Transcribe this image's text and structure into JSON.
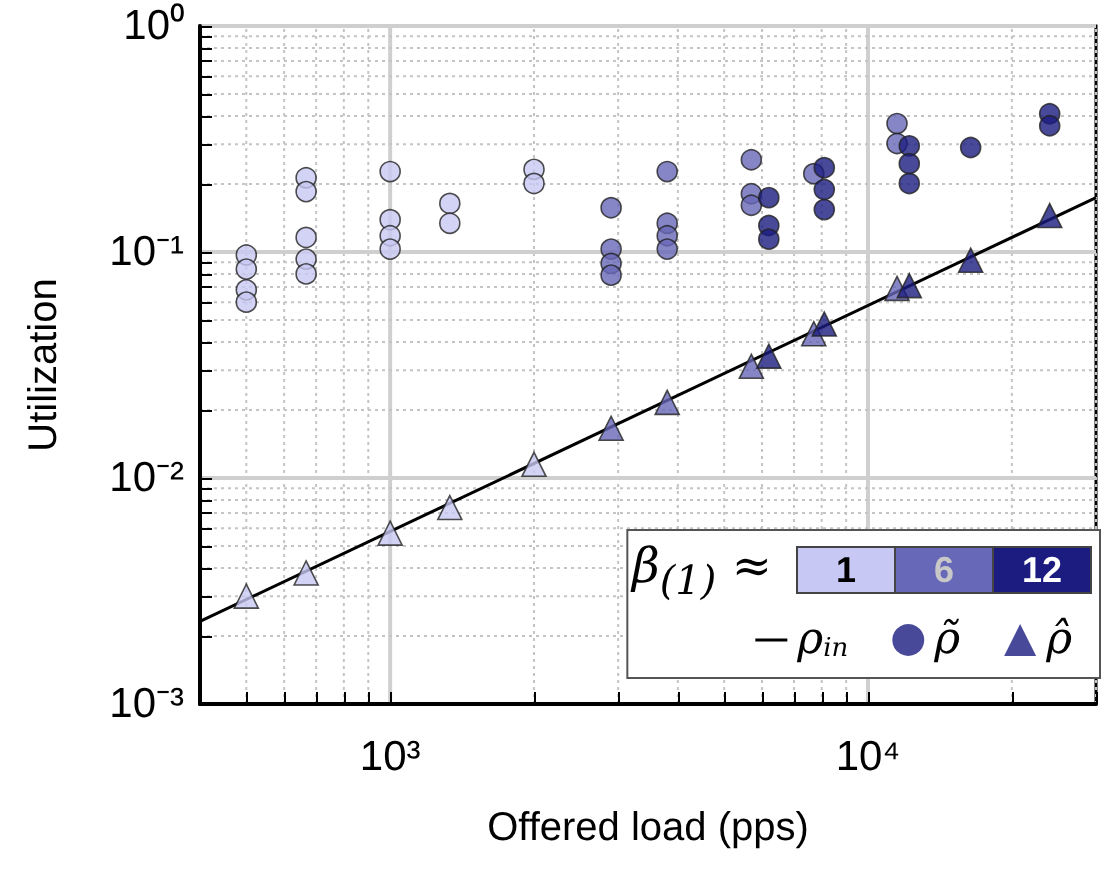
{
  "chart_data": {
    "type": "scatter",
    "xlabel": "Offered load (pps)",
    "ylabel": "Utilization",
    "log": "xy",
    "grid": true,
    "legend": "bottom right",
    "xlim": [
      400,
      30000
    ],
    "ylim": [
      0.001,
      1
    ],
    "xticks": [
      {
        "value": 1000,
        "label": "10³"
      },
      {
        "value": 10000,
        "label": "10⁴"
      }
    ],
    "yticks": [
      {
        "value": 0.001,
        "label": "10⁻³"
      },
      {
        "value": 0.01,
        "label": "10⁻²"
      },
      {
        "value": 0.1,
        "label": "10⁻¹"
      },
      {
        "value": 1,
        "label": "10⁰"
      }
    ],
    "clabel": "β$_{(1)}$ ≈",
    "annotations": [
      "1",
      "6",
      "12"
    ],
    "colors": [
      "#c8c8f4",
      "#6868b8",
      "#1c1c80"
    ],
    "series": [
      {
        "name": "ρ$_{in}$",
        "type": "line",
        "color": "#000000",
        "marker": "none",
        "x": [
          400,
          30000
        ],
        "values": [
          0.00232,
          0.174
        ]
      },
      {
        "name": "ρ̃",
        "marker": "circle",
        "x": [
          500,
          500,
          500,
          500,
          667,
          667,
          667,
          667,
          667,
          1000,
          1000,
          1000,
          1000,
          1333,
          1333,
          2000,
          2000,
          2900,
          2900,
          2900,
          2900,
          3800,
          3800,
          3800,
          3800,
          5700,
          5700,
          5700,
          6200,
          6200,
          6200,
          7700,
          8100,
          8100,
          8100,
          11500,
          11500,
          12200,
          12200,
          12200,
          16400,
          24000,
          24000
        ],
        "values": [
          0.097,
          0.084,
          0.068,
          0.06,
          0.213,
          0.185,
          0.116,
          0.093,
          0.08,
          0.227,
          0.139,
          0.118,
          0.103,
          0.164,
          0.134,
          0.232,
          0.201,
          0.157,
          0.103,
          0.089,
          0.079,
          0.227,
          0.134,
          0.118,
          0.103,
          0.256,
          0.181,
          0.161,
          0.174,
          0.131,
          0.114,
          0.222,
          0.236,
          0.189,
          0.154,
          0.37,
          0.302,
          0.295,
          0.246,
          0.201,
          0.29,
          0.409,
          0.362
        ],
        "colors": [
          "#c8c8f4",
          "#c8c8f4",
          "#c8c8f4",
          "#c8c8f4",
          "#c8c8f4",
          "#c8c8f4",
          "#c8c8f4",
          "#c8c8f4",
          "#c8c8f4",
          "#c8c8f4",
          "#c8c8f4",
          "#c8c8f4",
          "#c8c8f4",
          "#c8c8f4",
          "#c8c8f4",
          "#c8c8f4",
          "#c8c8f4",
          "#6868b8",
          "#6868b8",
          "#6868b8",
          "#6868b8",
          "#6868b8",
          "#6868b8",
          "#6868b8",
          "#6868b8",
          "#6868b8",
          "#6868b8",
          "#6868b8",
          "#1c1c80",
          "#1c1c80",
          "#1c1c80",
          "#6868b8",
          "#1c1c80",
          "#1c1c80",
          "#1c1c80",
          "#6868b8",
          "#6868b8",
          "#1c1c80",
          "#1c1c80",
          "#1c1c80",
          "#1c1c80",
          "#1c1c80",
          "#1c1c80"
        ]
      },
      {
        "name": "ρ̂",
        "marker": "triangle",
        "x": [
          500,
          667,
          1000,
          1333,
          2000,
          2900,
          3800,
          5700,
          6200,
          7700,
          8100,
          11500,
          12200,
          16400,
          24000
        ],
        "values": [
          0.003,
          0.0038,
          0.0057,
          0.0074,
          0.0115,
          0.0166,
          0.0216,
          0.0312,
          0.0346,
          0.0435,
          0.048,
          0.069,
          0.071,
          0.092,
          0.145
        ],
        "colors": [
          "#c8c8f4",
          "#c8c8f4",
          "#c8c8f4",
          "#c8c8f4",
          "#c8c8f4",
          "#6868b8",
          "#6868b8",
          "#6868b8",
          "#1c1c80",
          "#6868b8",
          "#1c1c80",
          "#6868b8",
          "#1c1c80",
          "#1c1c80",
          "#1c1c80"
        ]
      }
    ]
  }
}
